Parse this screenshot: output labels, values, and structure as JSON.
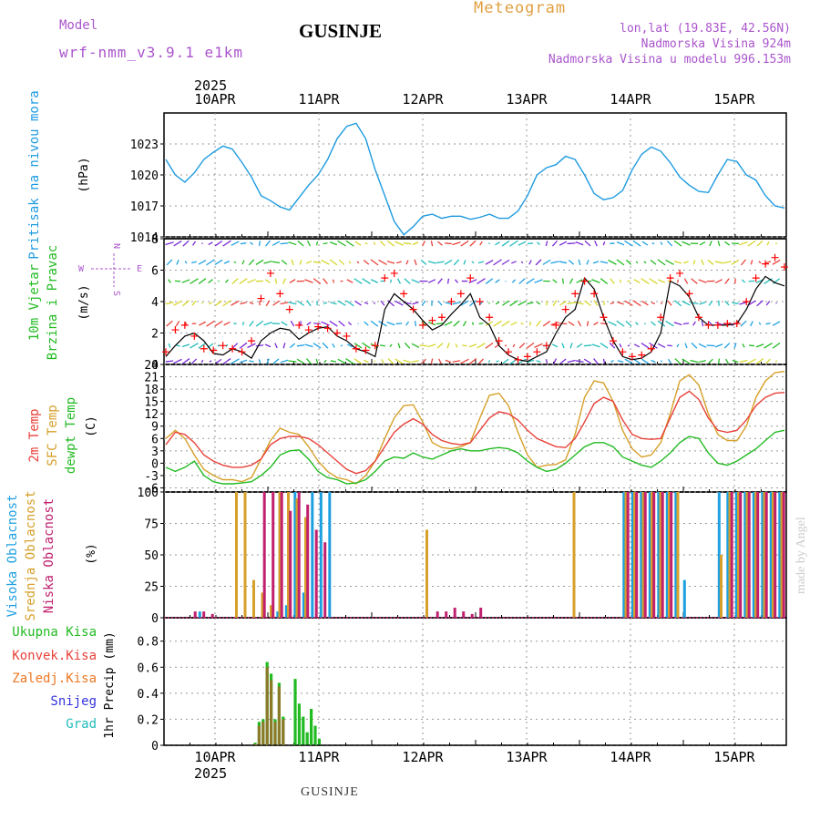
{
  "header": {
    "model_label": "Model",
    "model_value": "wrf-nmm_v3.9.1 e1km",
    "station": "GUSINJE",
    "title": "Meteogram",
    "lonlat": "lon,lat (19.83E, 42.56N)",
    "elevation": "Nadmorska Visina 924m",
    "model_elevation": "Nadmorska Visina u modelu 996.153m",
    "year_top": "2025",
    "year_bottom": "2025",
    "footer_station": "GUSINJE",
    "credit": "made by Angel"
  },
  "colors": {
    "pressure": "#1e9be0",
    "wind_speed": "#000000",
    "gust": "#ff0000",
    "temp2m": "#e8423a",
    "sfc_temp": "#d6a02a",
    "dewpt": "#22bb22",
    "high_cloud": "#1ea0e0",
    "mid_cloud": "#d6a02a",
    "low_cloud": "#c0206e",
    "total_precip": "#22bb22",
    "convective": "#e8423a",
    "frozen": "#ee7722",
    "snow": "#3333dd",
    "hail": "#22bbbb",
    "model_label": "#aa55cc",
    "title": "#e0a040"
  },
  "chart_data": [
    {
      "type": "line",
      "ylabel_left": "Pritisak na nivou mora",
      "unit": "(hPa)",
      "x_ticks": [
        "10APR",
        "11APR",
        "12APR",
        "13APR",
        "14APR",
        "15APR"
      ],
      "ylim": [
        1014,
        1026
      ],
      "y_ticks": [
        1014,
        1017,
        1020,
        1023
      ],
      "series": [
        {
          "values": [
            1021.5,
            1020.0,
            1019.3,
            1020.2,
            1021.5,
            1022.2,
            1022.8,
            1022.5,
            1021.2,
            1019.8,
            1018.0,
            1017.5,
            1016.9,
            1016.6,
            1017.8,
            1019.0,
            1020.0,
            1021.5,
            1023.5,
            1024.7,
            1025.0,
            1023.5,
            1020.5,
            1018.0,
            1015.5,
            1014.2,
            1015.0,
            1016.0,
            1016.2,
            1015.8,
            1016.0,
            1016.0,
            1015.7,
            1015.9,
            1016.2,
            1015.8,
            1015.8,
            1016.5,
            1018.0,
            1020.0,
            1020.7,
            1021.0,
            1021.8,
            1021.5,
            1020.0,
            1018.2,
            1017.6,
            1017.8,
            1018.5,
            1020.5,
            1022.0,
            1022.7,
            1022.3,
            1021.2,
            1019.8,
            1019.0,
            1018.4,
            1018.3,
            1020.0,
            1021.5,
            1021.3,
            1020.0,
            1019.5,
            1018.0,
            1017.0,
            1016.8
          ]
        }
      ]
    },
    {
      "type": "line",
      "ylabel_left": [
        "10m Vjetar",
        "Brzina i Pravac"
      ],
      "unit": "(m/s)",
      "compass": [
        "N",
        "E",
        "S",
        "W"
      ],
      "ylim": [
        0,
        8
      ],
      "y_ticks": [
        0,
        2,
        4,
        6,
        8
      ],
      "series": [
        {
          "name": "wind_speed",
          "values": [
            0.5,
            1.2,
            1.8,
            2.0,
            1.5,
            0.7,
            0.6,
            1.0,
            0.8,
            0.4,
            1.5,
            2.0,
            2.3,
            2.2,
            1.6,
            2.0,
            2.3,
            2.4,
            1.8,
            1.5,
            1.0,
            0.8,
            0.5,
            3.5,
            4.5,
            4.0,
            3.5,
            2.8,
            2.2,
            2.5,
            3.2,
            3.8,
            4.5,
            3.0,
            2.5,
            1.2,
            0.6,
            0.3,
            0.2,
            0.5,
            0.8,
            2.0,
            3.0,
            3.5,
            5.5,
            4.8,
            3.0,
            1.5,
            0.5,
            0.3,
            0.4,
            0.8,
            2.0,
            5.3,
            5.0,
            4.3,
            3.0,
            2.5,
            2.5,
            2.5,
            2.6,
            3.5,
            4.8,
            5.6,
            5.2,
            5.0
          ]
        },
        {
          "name": "gust",
          "values": [
            0.8,
            2.2,
            2.5,
            1.8,
            1.0,
            0.9,
            1.2,
            1.0,
            0.8,
            1.5,
            4.2,
            5.8,
            4.5,
            3.5,
            2.5,
            2.2,
            2.4,
            2.3,
            2.0,
            1.8,
            1.0,
            0.9,
            1.2,
            5.5,
            5.8,
            4.5,
            3.5,
            2.5,
            2.8,
            3.0,
            4.0,
            4.5,
            5.5,
            4.0,
            3.0,
            1.5,
            0.8,
            0.3,
            0.5,
            0.8,
            1.2,
            2.5,
            3.5,
            4.5,
            5.3,
            4.5,
            3.0,
            1.5,
            0.8,
            0.5,
            0.6,
            1.0,
            3.0,
            5.5,
            5.8,
            4.5,
            3.0,
            2.5,
            2.5,
            2.6,
            2.6,
            4.0,
            5.5,
            6.4,
            6.8,
            6.2
          ]
        }
      ]
    },
    {
      "type": "line",
      "ylabel_left": [
        "2m Temp",
        "SFC Temp",
        "dewpt Temp"
      ],
      "unit": "(C)",
      "ylim": [
        -7,
        24
      ],
      "y_ticks": [
        -6,
        -3,
        0,
        3,
        6,
        9,
        12,
        15,
        18,
        21,
        24
      ],
      "series": [
        {
          "name": "2m Temp",
          "values": [
            4.5,
            7.5,
            7.0,
            5.0,
            2.0,
            0.5,
            -0.5,
            -1.0,
            -1.0,
            -0.5,
            1.0,
            4.5,
            6.0,
            6.5,
            6.5,
            6.0,
            4.5,
            2.5,
            0.5,
            -1.5,
            -2.5,
            -1.8,
            0.5,
            4.0,
            7.5,
            9.5,
            10.8,
            9.5,
            7.0,
            5.5,
            4.8,
            4.5,
            5.0,
            8.0,
            11.0,
            12.5,
            12.0,
            10.5,
            8.0,
            6.0,
            5.0,
            4.0,
            3.8,
            6.0,
            10.0,
            14.5,
            16.0,
            15.0,
            10.5,
            7.0,
            6.0,
            5.8,
            6.0,
            11.0,
            16.0,
            17.5,
            15.5,
            11.0,
            8.0,
            7.5,
            8.0,
            10.5,
            14.0,
            16.0,
            17.0,
            17.2
          ]
        },
        {
          "name": "SFC Temp",
          "values": [
            6.0,
            8.0,
            6.0,
            2.0,
            -1.5,
            -3.0,
            -4.0,
            -4.0,
            -4.5,
            -3.5,
            1.0,
            5.5,
            8.5,
            7.5,
            7.0,
            4.0,
            0.5,
            -2.0,
            -3.5,
            -4.0,
            -5.0,
            -3.0,
            0.5,
            6.0,
            11.0,
            14.0,
            14.2,
            10.0,
            5.0,
            3.8,
            3.5,
            4.0,
            5.0,
            11.0,
            16.5,
            17.0,
            14.0,
            7.5,
            2.0,
            -1.0,
            -0.5,
            -0.3,
            0.8,
            7.0,
            16.0,
            20.0,
            19.5,
            15.0,
            8.0,
            3.5,
            1.5,
            2.0,
            5.0,
            12.0,
            20.0,
            21.5,
            19.0,
            12.0,
            7.0,
            5.5,
            5.5,
            9.0,
            16.0,
            20.0,
            22.0,
            22.3
          ]
        },
        {
          "name": "dewpt Temp",
          "values": [
            -1.0,
            -2.0,
            -1.0,
            0.5,
            -3.0,
            -4.5,
            -5.0,
            -5.0,
            -4.8,
            -4.5,
            -3.0,
            -1.0,
            2.0,
            3.0,
            3.2,
            1.0,
            -2.0,
            -3.5,
            -4.0,
            -5.0,
            -4.8,
            -4.0,
            -2.0,
            0.5,
            1.5,
            1.2,
            2.5,
            1.5,
            1.0,
            2.0,
            3.0,
            3.5,
            3.0,
            3.0,
            3.5,
            3.8,
            3.5,
            2.5,
            0.5,
            -1.0,
            -2.0,
            -1.5,
            0.0,
            2.0,
            4.0,
            5.0,
            5.0,
            4.0,
            1.5,
            0.5,
            -0.5,
            -1.0,
            0.5,
            2.5,
            5.0,
            6.5,
            6.0,
            2.5,
            0.0,
            -0.5,
            0.5,
            2.0,
            3.5,
            5.5,
            7.5,
            8.0
          ]
        }
      ]
    },
    {
      "type": "bar",
      "ylabel_left": [
        "Visoka Oblacnost",
        "Srednja Oblacnost",
        "Niska Oblacnost"
      ],
      "unit": "(%)",
      "ylim": [
        0,
        100
      ],
      "y_ticks": [
        0,
        25,
        50,
        75,
        100
      ],
      "series": [
        {
          "name": "Visoka Oblacnost",
          "values": [
            0,
            0,
            0,
            5,
            0,
            0,
            0,
            0,
            0,
            0,
            0,
            0,
            5,
            10,
            100,
            20,
            100,
            100,
            100,
            0,
            0,
            0,
            0,
            0,
            0,
            0,
            0,
            0,
            0,
            0,
            0,
            0,
            0,
            0,
            0,
            0,
            0,
            0,
            0,
            0,
            0,
            0,
            0,
            0,
            0,
            0,
            0,
            0,
            0,
            0,
            0,
            0,
            100,
            100,
            100,
            100,
            100,
            100,
            100,
            30,
            0,
            0,
            0,
            100,
            100,
            100,
            100,
            100,
            100,
            100,
            100
          ]
        },
        {
          "name": "Srednja Oblacnost",
          "values": [
            0,
            0,
            0,
            0,
            0,
            0,
            0,
            100,
            100,
            30,
            20,
            10,
            100,
            100,
            95,
            80,
            0,
            0,
            0,
            0,
            0,
            0,
            0,
            0,
            0,
            0,
            0,
            0,
            0,
            70,
            0,
            0,
            0,
            0,
            0,
            0,
            0,
            0,
            0,
            0,
            0,
            0,
            0,
            0,
            0,
            0,
            100,
            0,
            0,
            0,
            0,
            0,
            100,
            100,
            100,
            100,
            100,
            100,
            100,
            0,
            0,
            0,
            0,
            50,
            100,
            100,
            100,
            100,
            100,
            100,
            100
          ]
        },
        {
          "name": "Niska Oblacnost",
          "values": [
            0,
            0,
            5,
            5,
            3,
            0,
            0,
            0,
            0,
            0,
            100,
            100,
            100,
            85,
            100,
            90,
            70,
            60,
            0,
            0,
            0,
            0,
            0,
            0,
            0,
            0,
            0,
            0,
            0,
            0,
            5,
            5,
            8,
            5,
            3,
            8,
            0,
            0,
            0,
            0,
            0,
            0,
            0,
            0,
            0,
            0,
            0,
            0,
            0,
            0,
            0,
            0,
            100,
            100,
            100,
            100,
            100,
            100,
            0,
            0,
            0,
            0,
            0,
            0,
            100,
            100,
            100,
            100,
            100,
            100,
            100
          ]
        }
      ]
    },
    {
      "type": "bar",
      "ylabel_left": [
        "Ukupna Kisa",
        "Konvek.Kisa",
        "Zaledj.Kisa",
        "Snijeg",
        "Grad"
      ],
      "unit": "1hr Precip (mm)",
      "ylim": [
        0,
        0.98
      ],
      "y_ticks": [
        0,
        0.2,
        0.4,
        0.6,
        0.8
      ],
      "series": [
        {
          "name": "Ukupna Kisa",
          "values": [
            0.02,
            0.18,
            0.2,
            0.64,
            0.55,
            0.2,
            0.48,
            0.22,
            0.0,
            0.0,
            0.51,
            0.32,
            0.22,
            0.1,
            0.28,
            0.15,
            0.05
          ]
        },
        {
          "name": "Konvek.Kisa",
          "values": [
            0.01,
            0.15,
            0.18,
            0.6,
            0.5,
            0.18,
            0.45,
            0.2,
            0.0,
            0.0,
            0.0,
            0.0,
            0.0,
            0.0,
            0.0,
            0.0,
            0.0
          ]
        }
      ]
    }
  ]
}
